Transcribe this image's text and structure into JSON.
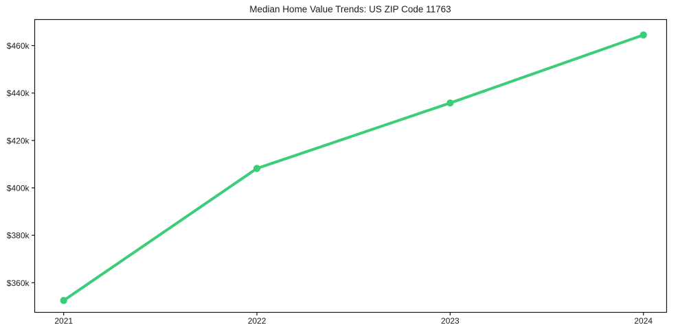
{
  "figure": {
    "background": "#ffffff"
  },
  "chart_data": {
    "type": "line",
    "title": "Median Home Value Trends: US ZIP Code 11763",
    "x": [
      2021,
      2022,
      2023,
      2024
    ],
    "x_tick_labels": [
      "2021",
      "2022",
      "2023",
      "2024"
    ],
    "series": [
      {
        "name": "median-home-value",
        "values": [
          352500,
          408200,
          435800,
          464500
        ],
        "color": "#3ccd78",
        "marker": "circle",
        "line_width": 4,
        "marker_radius": 5.2
      }
    ],
    "y_ticks": [
      360000,
      380000,
      400000,
      420000,
      440000,
      460000
    ],
    "y_tick_labels": [
      "$360k",
      "$380k",
      "$400k",
      "$420k",
      "$440k",
      "$460k"
    ],
    "xlim": [
      2020.85,
      2024.12
    ],
    "ylim": [
      347500,
      471000
    ],
    "xlabel": "",
    "ylabel": "",
    "grid": false,
    "legend_position": "none",
    "axis_color": "#141414",
    "text_color": "#1c1c1c"
  }
}
